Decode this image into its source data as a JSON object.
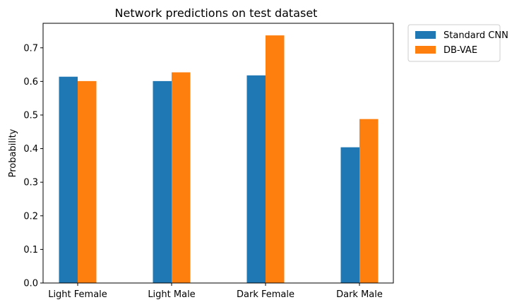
{
  "chart_data": {
    "type": "bar",
    "title": "Network predictions on test dataset",
    "xlabel": "",
    "ylabel": "Probability",
    "categories": [
      "Light Female",
      "Light Male",
      "Dark Female",
      "Dark Male"
    ],
    "series": [
      {
        "name": "Standard CNN",
        "color": "#1f77b4",
        "values": [
          0.614,
          0.601,
          0.618,
          0.404
        ]
      },
      {
        "name": "DB-VAE",
        "color": "#ff7f0e",
        "values": [
          0.601,
          0.627,
          0.737,
          0.488
        ]
      }
    ],
    "ylim": [
      0,
      0.773
    ],
    "yticks": [
      "0.0",
      "0.1",
      "0.2",
      "0.3",
      "0.4",
      "0.5",
      "0.6",
      "0.7"
    ],
    "grid": false,
    "legend_position": "outside top-right"
  }
}
